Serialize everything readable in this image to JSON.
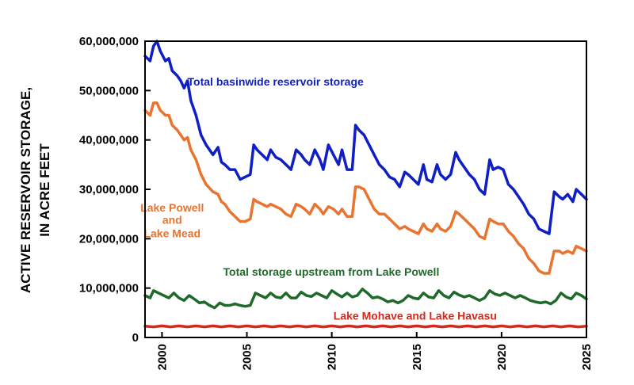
{
  "chart_data": {
    "type": "line",
    "ylabel": [
      "ACTIVE RESERVOIR STORAGE,",
      "IN ACRE FEET"
    ],
    "xlim": [
      1999.0,
      2025.0
    ],
    "ylim": [
      0,
      60000000
    ],
    "xticks": [
      2000,
      2005,
      2010,
      2015,
      2020,
      2025
    ],
    "yticks": [
      0,
      10000000,
      20000000,
      30000000,
      40000000,
      50000000,
      60000000
    ],
    "ytick_labels": [
      "0",
      "10,000,000",
      "20,000,000",
      "30,000,000",
      "40,000,000",
      "50,000,000",
      "60,000,000"
    ],
    "grid": false,
    "series": [
      {
        "name": "Total basinwide reservoir storage",
        "color": "#0f1fc4",
        "x": [
          1999.0,
          1999.3,
          1999.5,
          1999.7,
          1999.9,
          2000.2,
          2000.4,
          2000.6,
          2000.9,
          2001.1,
          2001.3,
          2001.5,
          2001.7,
          2002.0,
          2002.3,
          2002.6,
          2003.0,
          2003.3,
          2003.5,
          2003.7,
          2004.0,
          2004.3,
          2004.6,
          2004.9,
          2005.2,
          2005.4,
          2005.6,
          2005.9,
          2006.2,
          2006.4,
          2006.7,
          2007.0,
          2007.3,
          2007.6,
          2007.9,
          2008.2,
          2008.4,
          2008.7,
          2009.0,
          2009.3,
          2009.5,
          2009.8,
          2010.1,
          2010.4,
          2010.6,
          2010.9,
          2011.2,
          2011.4,
          2011.6,
          2011.9,
          2012.2,
          2012.5,
          2012.8,
          2013.1,
          2013.4,
          2013.7,
          2014.0,
          2014.3,
          2014.5,
          2014.8,
          2015.1,
          2015.4,
          2015.6,
          2015.9,
          2016.2,
          2016.4,
          2016.7,
          2017.0,
          2017.3,
          2017.5,
          2017.8,
          2018.1,
          2018.4,
          2018.7,
          2019.0,
          2019.3,
          2019.5,
          2019.8,
          2020.1,
          2020.4,
          2020.7,
          2021.0,
          2021.3,
          2021.6,
          2021.9,
          2022.2,
          2022.5,
          2022.8,
          2023.1,
          2023.4,
          2023.6,
          2023.9,
          2024.2,
          2024.4,
          2024.7,
          2025.0
        ],
        "values": [
          57000000,
          56000000,
          59000000,
          60000000,
          58000000,
          56000000,
          56500000,
          54000000,
          53000000,
          52000000,
          50500000,
          52000000,
          48000000,
          45000000,
          41000000,
          39000000,
          37000000,
          38500000,
          35500000,
          35000000,
          34000000,
          34000000,
          32000000,
          32500000,
          33000000,
          39000000,
          38000000,
          37000000,
          36000000,
          38000000,
          36500000,
          36000000,
          35000000,
          34000000,
          38000000,
          37000000,
          36000000,
          35000000,
          38000000,
          36000000,
          34000000,
          39000000,
          37000000,
          35000000,
          38000000,
          34000000,
          34000000,
          43000000,
          42000000,
          41000000,
          39000000,
          37000000,
          35000000,
          34000000,
          32500000,
          32000000,
          30500000,
          33500000,
          33000000,
          32000000,
          31000000,
          35000000,
          32000000,
          31500000,
          35000000,
          33000000,
          32000000,
          33000000,
          37500000,
          36000000,
          34500000,
          33000000,
          32000000,
          30000000,
          29000000,
          36000000,
          34000000,
          34500000,
          34000000,
          31000000,
          30000000,
          28500000,
          27000000,
          25000000,
          24000000,
          22000000,
          21500000,
          21000000,
          29500000,
          28500000,
          28000000,
          29000000,
          27500000,
          30000000,
          29000000,
          28000000
        ]
      },
      {
        "name": "Lake Powell and Lake Mead",
        "color": "#e8742f",
        "x": [
          1999.0,
          1999.3,
          1999.5,
          1999.7,
          1999.9,
          2000.2,
          2000.4,
          2000.6,
          2000.9,
          2001.1,
          2001.3,
          2001.5,
          2001.7,
          2002.0,
          2002.3,
          2002.6,
          2003.0,
          2003.3,
          2003.5,
          2003.7,
          2004.0,
          2004.3,
          2004.6,
          2004.9,
          2005.2,
          2005.4,
          2005.6,
          2005.9,
          2006.2,
          2006.4,
          2006.7,
          2007.0,
          2007.3,
          2007.6,
          2007.9,
          2008.2,
          2008.4,
          2008.7,
          2009.0,
          2009.3,
          2009.5,
          2009.8,
          2010.1,
          2010.4,
          2010.6,
          2010.9,
          2011.2,
          2011.4,
          2011.6,
          2011.9,
          2012.2,
          2012.5,
          2012.8,
          2013.1,
          2013.4,
          2013.7,
          2014.0,
          2014.3,
          2014.5,
          2014.8,
          2015.1,
          2015.4,
          2015.6,
          2015.9,
          2016.2,
          2016.4,
          2016.7,
          2017.0,
          2017.3,
          2017.5,
          2017.8,
          2018.1,
          2018.4,
          2018.7,
          2019.0,
          2019.3,
          2019.5,
          2019.8,
          2020.1,
          2020.4,
          2020.7,
          2021.0,
          2021.3,
          2021.6,
          2021.9,
          2022.2,
          2022.5,
          2022.8,
          2023.1,
          2023.4,
          2023.6,
          2023.9,
          2024.2,
          2024.4,
          2024.7,
          2025.0
        ],
        "values": [
          46000000,
          45000000,
          47500000,
          47500000,
          46000000,
          45000000,
          45000000,
          43000000,
          42000000,
          41000000,
          40000000,
          40500000,
          38000000,
          36000000,
          33000000,
          31000000,
          29500000,
          29000000,
          27500000,
          27000000,
          25500000,
          24500000,
          23500000,
          23500000,
          24000000,
          28000000,
          27500000,
          27000000,
          26500000,
          27000000,
          26500000,
          26000000,
          25000000,
          24500000,
          27000000,
          26500000,
          26000000,
          25000000,
          27000000,
          26000000,
          25000000,
          26500000,
          26000000,
          25000000,
          26000000,
          24500000,
          24500000,
          30500000,
          30500000,
          30000000,
          28000000,
          26000000,
          25000000,
          25000000,
          24000000,
          23000000,
          22000000,
          22500000,
          22000000,
          21500000,
          21000000,
          23000000,
          22000000,
          21500000,
          23000000,
          22000000,
          21500000,
          22500000,
          25500000,
          25000000,
          24000000,
          23000000,
          22000000,
          20500000,
          20000000,
          24000000,
          23500000,
          23000000,
          23000000,
          21500000,
          20500000,
          19000000,
          18000000,
          16000000,
          15000000,
          13500000,
          13000000,
          13000000,
          17500000,
          17500000,
          17000000,
          17500000,
          17000000,
          18500000,
          18000000,
          17500000
        ]
      },
      {
        "name": "Total storage upstream from Lake Powell",
        "color": "#1f6a2a",
        "x": [
          1999.0,
          1999.3,
          1999.5,
          1999.8,
          2000.1,
          2000.4,
          2000.7,
          2001.0,
          2001.3,
          2001.6,
          2001.9,
          2002.2,
          2002.5,
          2002.8,
          2003.1,
          2003.4,
          2003.7,
          2004.0,
          2004.3,
          2004.6,
          2004.9,
          2005.2,
          2005.5,
          2005.8,
          2006.1,
          2006.4,
          2006.7,
          2007.0,
          2007.3,
          2007.6,
          2007.9,
          2008.2,
          2008.5,
          2008.8,
          2009.1,
          2009.4,
          2009.7,
          2010.0,
          2010.3,
          2010.6,
          2010.9,
          2011.2,
          2011.5,
          2011.8,
          2012.1,
          2012.4,
          2012.7,
          2013.0,
          2013.3,
          2013.6,
          2013.9,
          2014.2,
          2014.5,
          2014.8,
          2015.1,
          2015.4,
          2015.7,
          2016.0,
          2016.3,
          2016.6,
          2016.9,
          2017.2,
          2017.5,
          2017.8,
          2018.1,
          2018.4,
          2018.7,
          2019.0,
          2019.3,
          2019.6,
          2019.9,
          2020.2,
          2020.5,
          2020.8,
          2021.1,
          2021.4,
          2021.7,
          2022.0,
          2022.3,
          2022.6,
          2022.9,
          2023.2,
          2023.5,
          2023.8,
          2024.1,
          2024.4,
          2024.7,
          2025.0
        ],
        "values": [
          8500000,
          8000000,
          9500000,
          9000000,
          8500000,
          8000000,
          9000000,
          8000000,
          7500000,
          8500000,
          7800000,
          7000000,
          7200000,
          6500000,
          6000000,
          7000000,
          6500000,
          6500000,
          6800000,
          6500000,
          6300000,
          6500000,
          9000000,
          8500000,
          8000000,
          9000000,
          8200000,
          8000000,
          9000000,
          8000000,
          8000000,
          9200000,
          8500000,
          8300000,
          9000000,
          8500000,
          8000000,
          9500000,
          8800000,
          8200000,
          9000000,
          8200000,
          8500000,
          9800000,
          9000000,
          8000000,
          8200000,
          7800000,
          7200000,
          7500000,
          7000000,
          7500000,
          8500000,
          8000000,
          7800000,
          9000000,
          8200000,
          8000000,
          9500000,
          8500000,
          8000000,
          9200000,
          8600000,
          8200000,
          8500000,
          8000000,
          7500000,
          8000000,
          9500000,
          8800000,
          8500000,
          9000000,
          8500000,
          8000000,
          8500000,
          8000000,
          7500000,
          7200000,
          7000000,
          7200000,
          6800000,
          7500000,
          9000000,
          8200000,
          7800000,
          9000000,
          8500000,
          7800000
        ]
      },
      {
        "name": "Lake Mohave and Lake Havasu",
        "color": "#d42a1e",
        "x": [
          1999.0,
          1999.5,
          2000.0,
          2000.5,
          2001.0,
          2001.5,
          2002.0,
          2002.5,
          2003.0,
          2003.5,
          2004.0,
          2004.5,
          2005.0,
          2005.5,
          2006.0,
          2006.5,
          2007.0,
          2007.5,
          2008.0,
          2008.5,
          2009.0,
          2009.5,
          2010.0,
          2010.5,
          2011.0,
          2011.5,
          2012.0,
          2012.5,
          2013.0,
          2013.5,
          2014.0,
          2014.5,
          2015.0,
          2015.5,
          2016.0,
          2016.5,
          2017.0,
          2017.5,
          2018.0,
          2018.5,
          2019.0,
          2019.5,
          2020.0,
          2020.5,
          2021.0,
          2021.5,
          2022.0,
          2022.5,
          2023.0,
          2023.5,
          2024.0,
          2024.5,
          2025.0
        ],
        "values": [
          2300000,
          2150000,
          2350000,
          2150000,
          2350000,
          2150000,
          2350000,
          2150000,
          2350000,
          2150000,
          2350000,
          2150000,
          2350000,
          2150000,
          2350000,
          2150000,
          2350000,
          2150000,
          2350000,
          2150000,
          2350000,
          2150000,
          2350000,
          2150000,
          2350000,
          2150000,
          2350000,
          2150000,
          2350000,
          2150000,
          2350000,
          2150000,
          2350000,
          2150000,
          2350000,
          2150000,
          2350000,
          2150000,
          2350000,
          2150000,
          2350000,
          2150000,
          2350000,
          2150000,
          2350000,
          2150000,
          2350000,
          2150000,
          2350000,
          2150000,
          2350000,
          2150000,
          2300000
        ]
      }
    ],
    "annotations": [
      {
        "text": "Total basinwide reservoir storage",
        "series": 0,
        "anchor": "start",
        "x": 2001.5,
        "y": 51000000
      },
      {
        "text": "Lake Powell",
        "series": 1,
        "anchor": "middle",
        "x": 2000.6,
        "y": 25500000
      },
      {
        "text": "and",
        "series": 1,
        "anchor": "middle",
        "x": 2000.6,
        "y": 23000000
      },
      {
        "text": "Lake Mead",
        "series": 1,
        "anchor": "middle",
        "x": 2000.6,
        "y": 20300000
      },
      {
        "text": "Total storage upstream from Lake Powell",
        "series": 2,
        "anchor": "start",
        "x": 2003.6,
        "y": 12500000
      },
      {
        "text": "Lake Mohave and Lake Havasu",
        "series": 3,
        "anchor": "start",
        "x": 2010.1,
        "y": 3600000
      }
    ]
  }
}
